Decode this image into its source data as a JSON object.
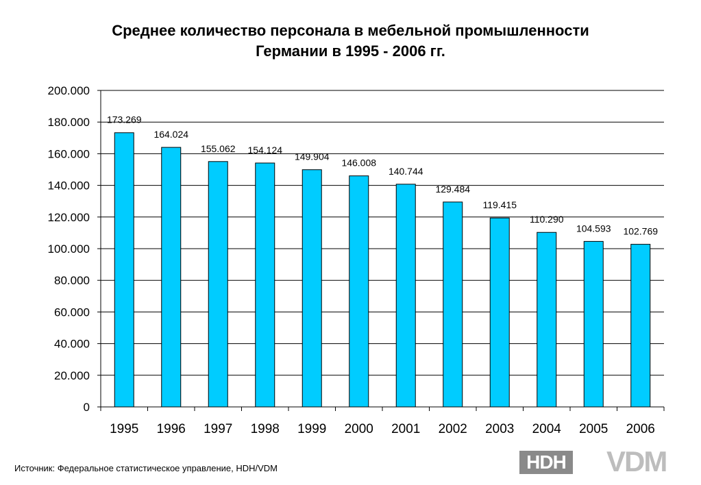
{
  "chart_data": {
    "type": "bar",
    "title": "Среднее количество персонала в мебельной промышленности Германии в 1995 - 2006 гг.",
    "title_lines": [
      "Среднее количество персонала в мебельной промышленности",
      "Германии в 1995 - 2006 гг."
    ],
    "categories": [
      "1995",
      "1996",
      "1997",
      "1998",
      "1999",
      "2000",
      "2001",
      "2002",
      "2003",
      "2004",
      "2005",
      "2006"
    ],
    "values": [
      173269,
      164024,
      155062,
      154124,
      149904,
      146008,
      140744,
      129484,
      119415,
      110290,
      104593,
      102769
    ],
    "data_labels": [
      "173.269",
      "164.024",
      "155.062",
      "154.124",
      "149.904",
      "146.008",
      "140.744",
      "129.484",
      "119.415",
      "110.290",
      "104.593",
      "102.769"
    ],
    "y_ticks": [
      0,
      20000,
      40000,
      60000,
      80000,
      100000,
      120000,
      140000,
      160000,
      180000,
      200000
    ],
    "y_tick_labels": [
      "0",
      "20.000",
      "40.000",
      "60.000",
      "80.000",
      "100.000",
      "120.000",
      "140.000",
      "160.000",
      "180.000",
      "200.000"
    ],
    "ylim": [
      0,
      200000
    ],
    "xlabel": "",
    "ylabel": "",
    "grid": true,
    "legend": "none",
    "colors": {
      "bar_fill": "#00ccff",
      "bar_stroke": "#000000",
      "grid": "#000000"
    }
  },
  "footer": {
    "source": "Источник: Федеральное статистическое управление, HDH/VDM"
  },
  "logos": {
    "hdh": "HDH",
    "vdm": "VDM"
  }
}
